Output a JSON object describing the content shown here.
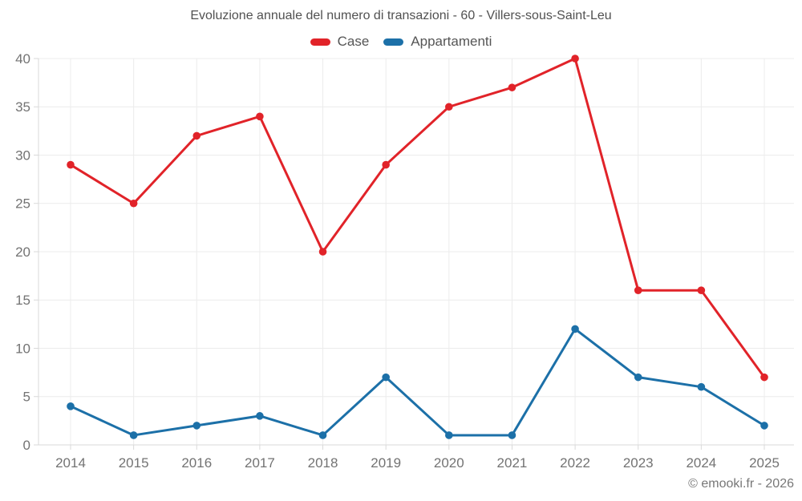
{
  "title": "Evoluzione annuale del numero di transazioni - 60 - Villers-sous-Saint-Leu",
  "footer": "© emooki.fr - 2026",
  "chart_data": {
    "type": "line",
    "title": "Evoluzione annuale del numero di transazioni - 60 - Villers-sous-Saint-Leu",
    "categories": [
      "2014",
      "2015",
      "2016",
      "2017",
      "2018",
      "2019",
      "2020",
      "2021",
      "2022",
      "2023",
      "2024",
      "2025"
    ],
    "series": [
      {
        "name": "Case",
        "color": "#e12329",
        "values": [
          29,
          25,
          32,
          34,
          20,
          29,
          35,
          37,
          40,
          16,
          16,
          7
        ]
      },
      {
        "name": "Appartamenti",
        "color": "#1c70a8",
        "values": [
          4,
          1,
          2,
          3,
          1,
          7,
          1,
          1,
          12,
          7,
          6,
          2
        ]
      }
    ],
    "xlabel": "",
    "ylabel": "",
    "ylim": [
      0,
      40
    ],
    "ytick_step": 5,
    "yticks": [
      0,
      5,
      10,
      15,
      20,
      25,
      30,
      35,
      40
    ],
    "grid": true,
    "legend_position": "top",
    "grid_color": "#ececec",
    "axis_color": "#d9d9d9",
    "tick_label_color": "#737373"
  }
}
